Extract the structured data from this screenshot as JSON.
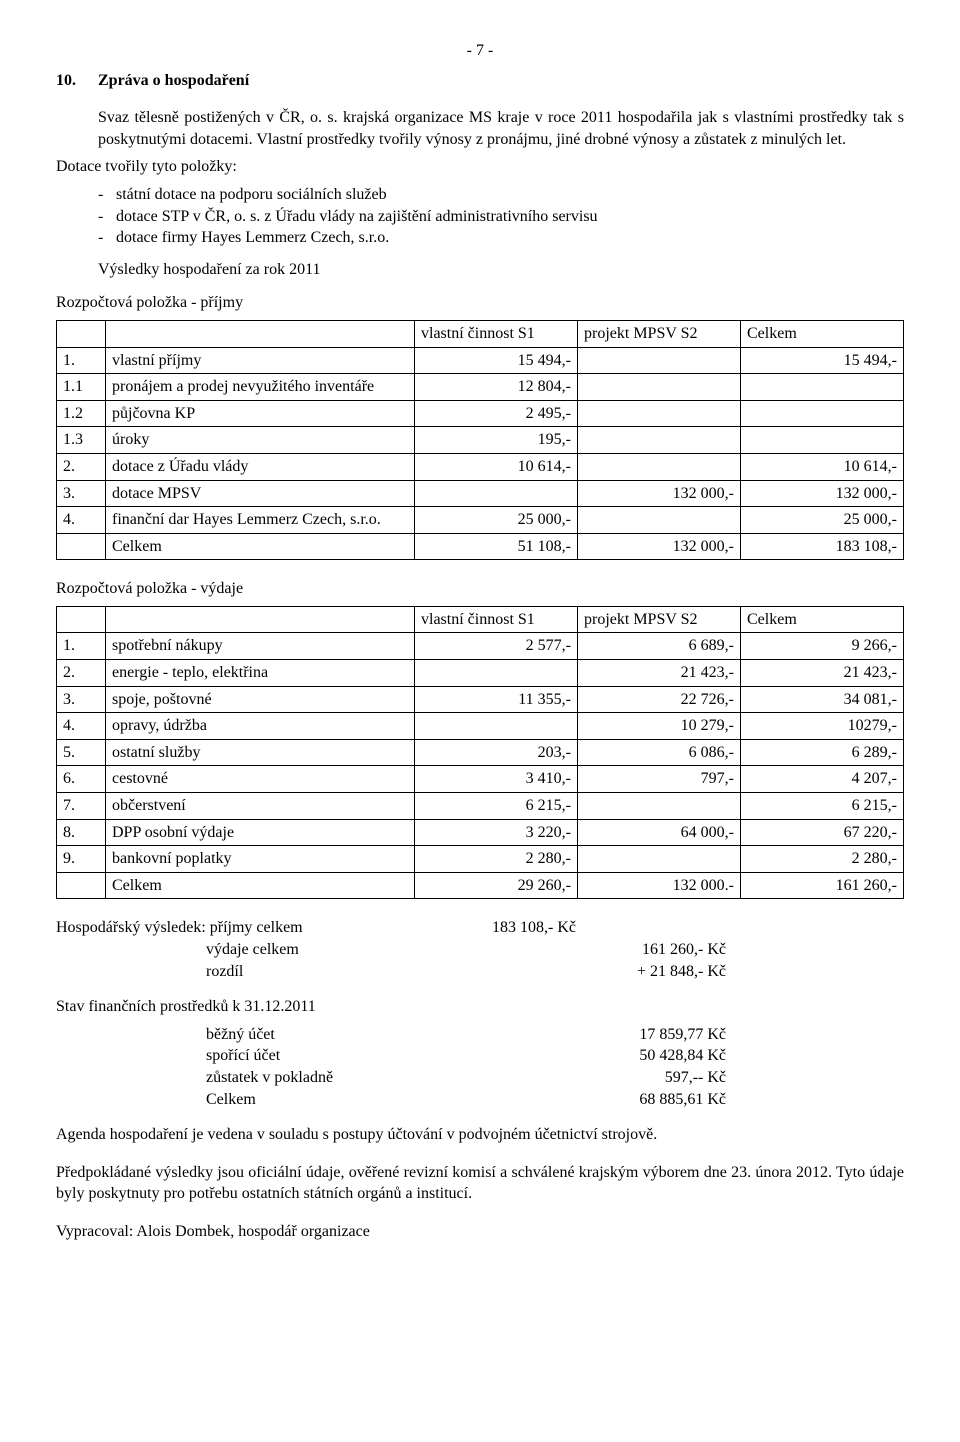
{
  "page_number": "- 7 -",
  "heading": {
    "num": "10.",
    "title": "Zpráva o hospodaření"
  },
  "intro": [
    "Svaz tělesně postižených v ČR, o. s. krajská organizace MS kraje v roce 2011 hospodařila jak s vlastními prostředky tak s poskytnutými dotacemi. Vlastní prostředky tvořily výnosy z pronájmu, jiné drobné výnosy a zůstatek z minulých let.",
    "Dotace tvořily tyto položky:"
  ],
  "dotace_items": [
    "státní dotace na podporu sociálních služeb",
    "dotace STP v ČR, o. s. z Úřadu vlády na zajištění administrativního servisu",
    "dotace firmy Hayes Lemmerz Czech, s.r.o."
  ],
  "results_title": "Výsledky hospodaření za rok 2011",
  "prijmy_title": "Rozpočtová položka - příjmy",
  "table_headers": [
    "vlastní činnost S1",
    "projekt MPSV S2",
    "Celkem"
  ],
  "prijmy_rows": [
    {
      "n": "1.",
      "label": "vlastní příjmy",
      "s1": "15 494,-",
      "s2": "",
      "c": "15 494,-"
    },
    {
      "n": "1.1",
      "label": "pronájem a prodej nevyužitého  inventáře",
      "s1": "12 804,-",
      "s2": "",
      "c": ""
    },
    {
      "n": "1.2",
      "label": "půjčovna KP",
      "s1": "2 495,-",
      "s2": "",
      "c": ""
    },
    {
      "n": "1.3",
      "label": "úroky",
      "s1": "195,-",
      "s2": "",
      "c": ""
    },
    {
      "n": "2.",
      "label": "dotace z Úřadu vlády",
      "s1": "10 614,-",
      "s2": "",
      "c": "10 614,-"
    },
    {
      "n": "3.",
      "label": "dotace MPSV",
      "s1": "",
      "s2": "132 000,-",
      "c": "132 000,-"
    },
    {
      "n": "4.",
      "label": "finanční dar Hayes Lemmerz Czech, s.r.o.",
      "s1": "25 000,-",
      "s2": "",
      "c": "25 000,-"
    },
    {
      "n": "",
      "label": "Celkem",
      "s1": "51 108,-",
      "s2": "132 000,-",
      "c": "183 108,-"
    }
  ],
  "vydaje_title": "Rozpočtová položka - výdaje",
  "vydaje_rows": [
    {
      "n": "1.",
      "label": "spotřební nákupy",
      "s1": "2 577,-",
      "s2": "6 689,-",
      "c": "9 266,-"
    },
    {
      "n": "2.",
      "label": "energie - teplo, elektřina",
      "s1": "",
      "s2": "21 423,-",
      "c": "21 423,-"
    },
    {
      "n": "3.",
      "label": "spoje, poštovné",
      "s1": "11 355,-",
      "s2": "22 726,-",
      "c": "34 081,-"
    },
    {
      "n": "4.",
      "label": "opravy, údržba",
      "s1": "",
      "s2": "10 279,-",
      "c": "10279,-"
    },
    {
      "n": "5.",
      "label": "ostatní služby",
      "s1": "203,-",
      "s2": "6 086,-",
      "c": "6 289,-"
    },
    {
      "n": "6.",
      "label": "cestovné",
      "s1": "3 410,-",
      "s2": "797,-",
      "c": "4 207,-"
    },
    {
      "n": "7.",
      "label": "občerstvení",
      "s1": "6 215,-",
      "s2": "",
      "c": "6 215,-"
    },
    {
      "n": "8.",
      "label": "DPP osobní výdaje",
      "s1": "3 220,-",
      "s2": "64 000,-",
      "c": "67 220,-"
    },
    {
      "n": "9.",
      "label": "bankovní poplatky",
      "s1": "2 280,-",
      "s2": "",
      "c": "2 280,-"
    },
    {
      "n": "",
      "label": "Celkem",
      "s1": "29 260,-",
      "s2": "132 000.-",
      "c": "161 260,-"
    }
  ],
  "hospodarsky": {
    "l1": "Hospodářský výsledek: příjmy celkem",
    "v1": "183 108,- Kč",
    "l2": "výdaje celkem",
    "v2": "161 260,- Kč",
    "l3": "rozdíl",
    "v3": "+    21 848,- Kč"
  },
  "stav_title": "Stav finančních prostředků k 31.12.2011",
  "stav": [
    {
      "l": "běžný účet",
      "v": "17 859,77 Kč"
    },
    {
      "l": "spořící účet",
      "v": "50 428,84 Kč"
    },
    {
      "l": "zůstatek v pokladně",
      "v": "597,--  Kč"
    },
    {
      "l": "Celkem",
      "v": "68 885,61 Kč"
    }
  ],
  "closing": [
    "Agenda hospodaření je vedena v souladu s postupy účtování v podvojném účetnictví strojově.",
    "Předpokládané výsledky  jsou  oficiální  údaje,  ověřené  revizní komisí a  schválené krajským výborem dne 23. února 2012. Tyto údaje byly poskytnuty pro potřebu ostatních státních orgánů a institucí."
  ],
  "author": "Vypracoval: Alois Dombek, hospodář organizace"
}
